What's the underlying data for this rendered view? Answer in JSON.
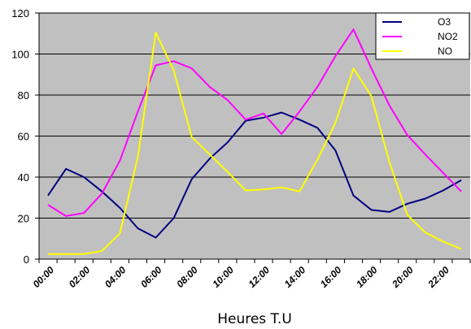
{
  "chart_data": {
    "type": "line",
    "xlabel": "Heures T.U",
    "ylabel": "",
    "ylim": [
      0,
      120
    ],
    "yticks": [
      0,
      20,
      40,
      60,
      80,
      100,
      120
    ],
    "x_tick_labels": [
      "00:00",
      "02:00",
      "04:00",
      "06:00",
      "08:00",
      "10:00",
      "12:00",
      "14:00",
      "16:00",
      "18:00",
      "20:00",
      "22:00"
    ],
    "grid": true,
    "plot_background": "#c0c0c0",
    "legend_position": "top-right",
    "series": [
      {
        "name": "O3",
        "color": "#000080",
        "values": [
          31,
          44,
          40,
          33,
          25,
          15,
          10.5,
          20,
          39,
          49,
          57,
          67.5,
          69,
          71.5,
          68,
          64,
          53,
          31,
          24,
          23,
          27,
          29.5,
          33.5,
          38.5
        ]
      },
      {
        "name": "NO2",
        "color": "#ff00ff",
        "values": [
          26.5,
          21,
          22.5,
          32,
          48,
          72,
          94.5,
          96.5,
          93,
          84,
          77.5,
          68,
          71,
          61,
          72,
          84,
          99,
          112,
          93,
          75,
          60.5,
          51,
          42,
          33
        ]
      },
      {
        "name": "NO",
        "color": "#ffff00",
        "values": [
          2.5,
          2.5,
          2.5,
          4,
          12.5,
          50,
          110.5,
          92,
          59.5,
          51,
          42.5,
          33.5,
          34,
          35,
          33,
          48.5,
          66.5,
          93,
          79.5,
          47.5,
          21.5,
          13,
          8.5,
          5
        ]
      }
    ]
  }
}
